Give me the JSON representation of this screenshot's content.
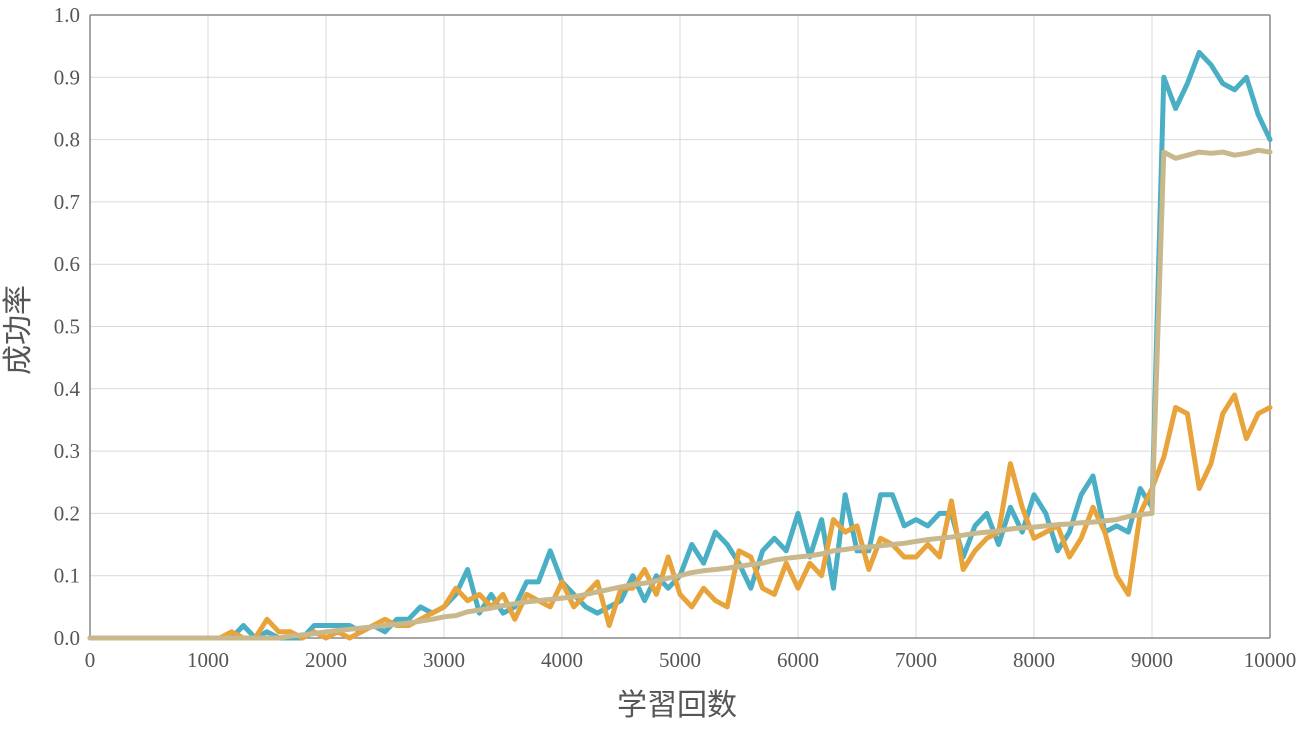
{
  "chart_data": {
    "type": "line",
    "xlabel": "学習回数",
    "ylabel": "成功率",
    "xlim": [
      0,
      10000
    ],
    "ylim": [
      0,
      1.0
    ],
    "x_ticks": [
      "0",
      "1000",
      "2000",
      "3000",
      "4000",
      "5000",
      "6000",
      "7000",
      "8000",
      "9000",
      "10000"
    ],
    "y_ticks": [
      "0.0",
      "0.1",
      "0.2",
      "0.3",
      "0.4",
      "0.5",
      "0.6",
      "0.7",
      "0.8",
      "0.9",
      "1.0"
    ],
    "grid": true,
    "x": [
      0,
      100,
      200,
      300,
      400,
      500,
      600,
      700,
      800,
      900,
      1000,
      1100,
      1200,
      1300,
      1400,
      1500,
      1600,
      1700,
      1800,
      1900,
      2000,
      2100,
      2200,
      2300,
      2400,
      2500,
      2600,
      2700,
      2800,
      2900,
      3000,
      3100,
      3200,
      3300,
      3400,
      3500,
      3600,
      3700,
      3800,
      3900,
      4000,
      4100,
      4200,
      4300,
      4400,
      4500,
      4600,
      4700,
      4800,
      4900,
      5000,
      5100,
      5200,
      5300,
      5400,
      5500,
      5600,
      5700,
      5800,
      5900,
      6000,
      6100,
      6200,
      6300,
      6400,
      6500,
      6600,
      6700,
      6800,
      6900,
      7000,
      7100,
      7200,
      7300,
      7400,
      7500,
      7600,
      7700,
      7800,
      7900,
      8000,
      8100,
      8200,
      8300,
      8400,
      8500,
      8600,
      8700,
      8800,
      8900,
      9000,
      9100,
      9200,
      9300,
      9400,
      9500,
      9600,
      9700,
      9800,
      9900,
      10000
    ],
    "series": [
      {
        "color": "#4aafc4",
        "values": [
          0,
          0,
          0,
          0,
          0,
          0,
          0,
          0,
          0,
          0,
          0,
          0,
          0,
          0.02,
          0,
          0.01,
          0,
          0,
          0,
          0.02,
          0.02,
          0.02,
          0.02,
          0.01,
          0.02,
          0.01,
          0.03,
          0.03,
          0.05,
          0.04,
          0.05,
          0.07,
          0.11,
          0.04,
          0.07,
          0.04,
          0.05,
          0.09,
          0.09,
          0.14,
          0.09,
          0.07,
          0.05,
          0.04,
          0.05,
          0.06,
          0.1,
          0.06,
          0.1,
          0.08,
          0.1,
          0.15,
          0.12,
          0.17,
          0.15,
          0.12,
          0.08,
          0.14,
          0.16,
          0.14,
          0.2,
          0.13,
          0.19,
          0.08,
          0.23,
          0.14,
          0.14,
          0.23,
          0.23,
          0.18,
          0.19,
          0.18,
          0.2,
          0.2,
          0.13,
          0.18,
          0.2,
          0.15,
          0.21,
          0.17,
          0.23,
          0.2,
          0.14,
          0.17,
          0.23,
          0.26,
          0.17,
          0.18,
          0.17,
          0.24,
          0.21,
          0.9,
          0.85,
          0.89,
          0.94,
          0.92,
          0.89,
          0.88,
          0.9,
          0.84,
          0.8
        ]
      },
      {
        "color": "#e8a33a",
        "values": [
          0,
          0,
          0,
          0,
          0,
          0,
          0,
          0,
          0,
          0,
          0,
          0,
          0.01,
          0,
          0,
          0.03,
          0.01,
          0.01,
          0,
          0.01,
          0,
          0.01,
          0,
          0.01,
          0.02,
          0.03,
          0.02,
          0.02,
          0.03,
          0.04,
          0.05,
          0.08,
          0.06,
          0.07,
          0.05,
          0.07,
          0.03,
          0.07,
          0.06,
          0.05,
          0.09,
          0.05,
          0.07,
          0.09,
          0.02,
          0.08,
          0.08,
          0.11,
          0.07,
          0.13,
          0.07,
          0.05,
          0.08,
          0.06,
          0.05,
          0.14,
          0.13,
          0.08,
          0.07,
          0.12,
          0.08,
          0.12,
          0.1,
          0.19,
          0.17,
          0.18,
          0.11,
          0.16,
          0.15,
          0.13,
          0.13,
          0.15,
          0.13,
          0.22,
          0.11,
          0.14,
          0.16,
          0.17,
          0.28,
          0.21,
          0.16,
          0.17,
          0.18,
          0.13,
          0.16,
          0.21,
          0.17,
          0.1,
          0.07,
          0.2,
          0.24,
          0.29,
          0.37,
          0.36,
          0.24,
          0.28,
          0.36,
          0.39,
          0.32,
          0.36,
          0.37
        ]
      },
      {
        "color": "#c8b88c",
        "values": [
          0,
          0,
          0,
          0,
          0,
          0,
          0,
          0,
          0,
          0,
          0,
          0,
          0,
          0,
          0,
          0,
          0,
          0.003,
          0.005,
          0.007,
          0.01,
          0.012,
          0.014,
          0.016,
          0.018,
          0.02,
          0.022,
          0.024,
          0.027,
          0.03,
          0.034,
          0.036,
          0.042,
          0.045,
          0.048,
          0.052,
          0.055,
          0.058,
          0.06,
          0.062,
          0.064,
          0.066,
          0.07,
          0.074,
          0.078,
          0.082,
          0.086,
          0.088,
          0.092,
          0.096,
          0.1,
          0.105,
          0.108,
          0.11,
          0.112,
          0.115,
          0.118,
          0.12,
          0.125,
          0.128,
          0.13,
          0.132,
          0.135,
          0.14,
          0.142,
          0.145,
          0.146,
          0.148,
          0.15,
          0.152,
          0.155,
          0.158,
          0.16,
          0.162,
          0.165,
          0.168,
          0.17,
          0.172,
          0.175,
          0.177,
          0.178,
          0.18,
          0.182,
          0.183,
          0.185,
          0.186,
          0.188,
          0.19,
          0.195,
          0.198,
          0.2,
          0.78,
          0.77,
          0.775,
          0.78,
          0.778,
          0.78,
          0.775,
          0.778,
          0.783,
          0.78
        ]
      }
    ]
  }
}
